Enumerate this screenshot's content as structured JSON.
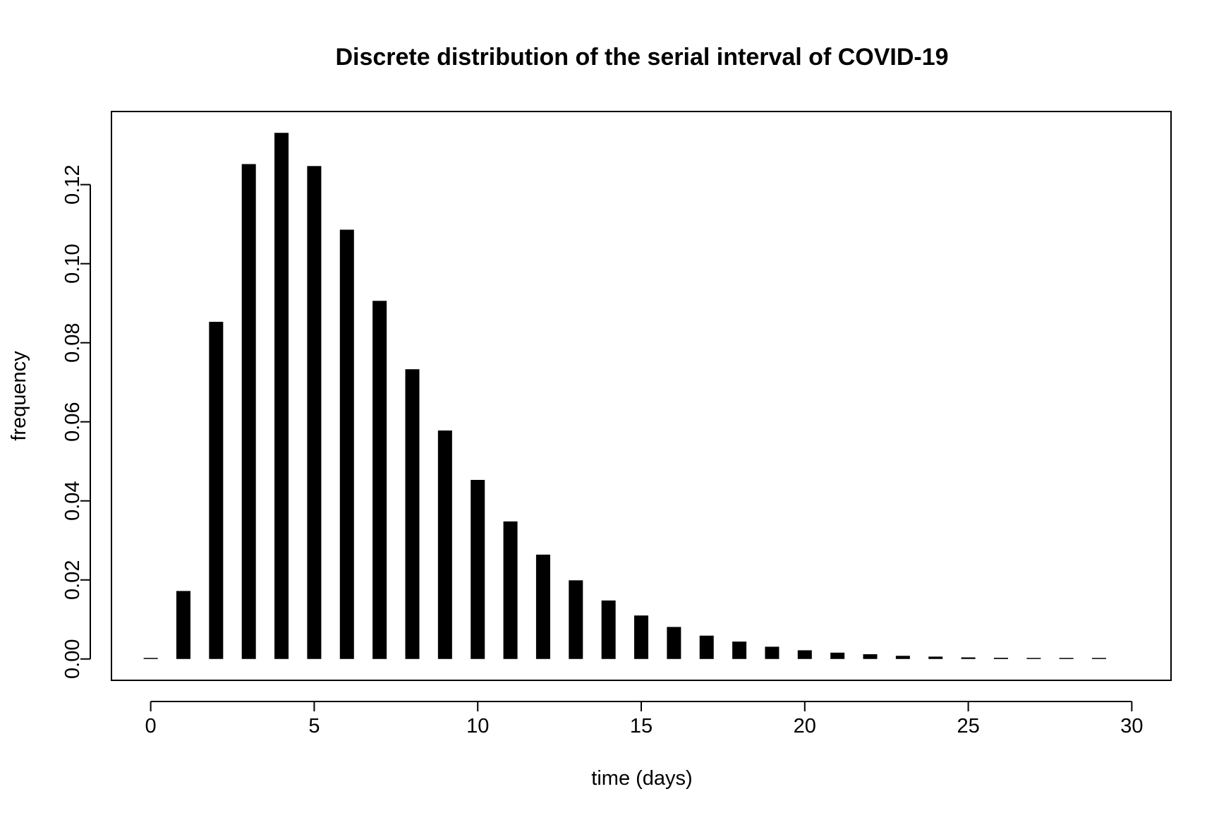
{
  "chart_data": {
    "type": "bar",
    "title": "Discrete distribution of the serial interval of COVID-19",
    "xlabel": "time (days)",
    "ylabel": "frequency",
    "xlim": [
      -1.2,
      31.2
    ],
    "ylim": [
      -0.0054,
      0.1385
    ],
    "xticks": [
      0,
      5,
      10,
      15,
      20,
      25,
      30
    ],
    "xtick_labels": [
      "0",
      "5",
      "10",
      "15",
      "20",
      "25",
      "30"
    ],
    "yticks": [
      0.0,
      0.02,
      0.04,
      0.06,
      0.08,
      0.1,
      0.12
    ],
    "ytick_labels": [
      "0.00",
      "0.02",
      "0.04",
      "0.06",
      "0.08",
      "0.10",
      "0.12"
    ],
    "grid": false,
    "x": [
      0,
      1,
      2,
      3,
      4,
      5,
      6,
      7,
      8,
      9,
      10,
      11,
      12,
      13,
      14,
      15,
      16,
      17,
      18,
      19,
      20,
      21,
      22,
      23,
      24,
      25,
      26,
      27,
      28,
      29
    ],
    "values": [
      0,
      0.0172,
      0.0853,
      0.1252,
      0.1331,
      0.1247,
      0.1086,
      0.0906,
      0.0733,
      0.0578,
      0.0453,
      0.0348,
      0.0264,
      0.0199,
      0.0148,
      0.011,
      0.0081,
      0.0059,
      0.0044,
      0.0031,
      0.0022,
      0.0016,
      0.0012,
      0.0008,
      0.0006,
      0.0004,
      0.0003,
      0.0002,
      0.0001,
      0.0001
    ],
    "bar_color": "#000000"
  }
}
